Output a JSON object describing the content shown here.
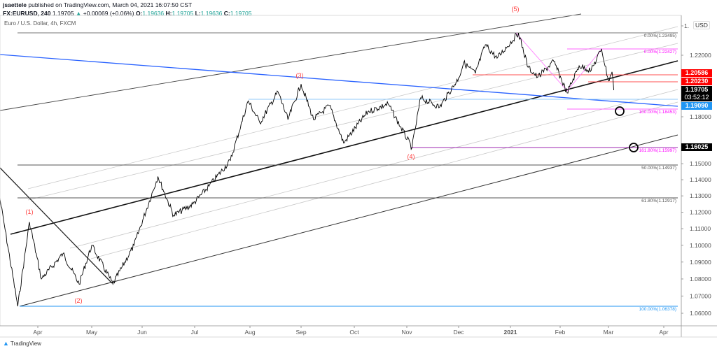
{
  "header": {
    "author": "jsaettele",
    "published": "published on TradingView.com, March 04, 2021 16:07:50 CST",
    "symbol": "FX:EURUSD, 240",
    "last": "1.19705",
    "change_icon": "triangle-up-icon",
    "change": "+0.00069 (+0.06%)",
    "o_label": "O:",
    "o": "1.19636",
    "h_label": "H:",
    "h": "1.19705",
    "l_label": "L:",
    "l": "1.19636",
    "c_label": "C:",
    "c": "1.19705"
  },
  "legend": "Euro / U.S. Dollar, 4h, FXCM",
  "currency": "USD",
  "colors": {
    "up": "#26a69a",
    "red": "#ff0000",
    "blue": "#2962ff",
    "magenta": "#ff00ff",
    "wave": "#ff3b3b"
  },
  "badges": [
    {
      "text": "1.20586",
      "color": "#ff0000"
    },
    {
      "text": "1.20230",
      "color": "#ff0000"
    },
    {
      "text": "1.19705",
      "color": "#000000"
    },
    {
      "text": "03:52:12",
      "color": "#000000"
    },
    {
      "text": "1.19090",
      "color": "#2196f3"
    },
    {
      "text": "1.16025",
      "color": "#000000"
    }
  ],
  "footer": {
    "brand": "TradingView",
    "logo_icon": "tradingview-logo-icon"
  },
  "chart_data": {
    "type": "line",
    "title": "",
    "scale": "log",
    "ylim": [
      1.055,
      1.255
    ],
    "x_ticks": [
      "Apr",
      "May",
      "Jun",
      "Jul",
      "Aug",
      "Sep",
      "Oct",
      "Nov",
      "Dec",
      "2021",
      "Feb",
      "Mar",
      "Apr"
    ],
    "y_ticks": [
      "1.",
      "1.22000",
      "1.18000",
      "1.15000",
      "1.14000",
      "1.13000",
      "1.12000",
      "1.11000",
      "1.10000",
      "1.09000",
      "1.08000",
      "1.07000",
      "1.06000"
    ],
    "series": [
      {
        "values": [
          [
            "2020-03-09",
            1.13
          ],
          [
            "2020-03-12",
            1.112
          ],
          [
            "2020-03-20",
            1.064
          ],
          [
            "2020-03-27",
            1.114
          ],
          [
            "2020-04-03",
            1.08
          ],
          [
            "2020-04-15",
            1.095
          ],
          [
            "2020-04-24",
            1.077
          ],
          [
            "2020-05-01",
            1.1
          ],
          [
            "2020-05-14",
            1.077
          ],
          [
            "2020-05-27",
            1.1
          ],
          [
            "2020-06-10",
            1.142
          ],
          [
            "2020-06-19",
            1.118
          ],
          [
            "2020-06-30",
            1.125
          ],
          [
            "2020-07-09",
            1.136
          ],
          [
            "2020-07-21",
            1.152
          ],
          [
            "2020-07-31",
            1.19
          ],
          [
            "2020-08-07",
            1.176
          ],
          [
            "2020-08-18",
            1.196
          ],
          [
            "2020-08-24",
            1.178
          ],
          [
            "2020-09-01",
            1.201
          ],
          [
            "2020-09-08",
            1.178
          ],
          [
            "2020-09-17",
            1.187
          ],
          [
            "2020-09-25",
            1.163
          ],
          [
            "2020-10-09",
            1.183
          ],
          [
            "2020-10-21",
            1.188
          ],
          [
            "2020-11-04",
            1.16
          ],
          [
            "2020-11-09",
            1.192
          ],
          [
            "2020-11-20",
            1.186
          ],
          [
            "2020-12-01",
            1.205
          ],
          [
            "2020-12-04",
            1.215
          ],
          [
            "2020-12-11",
            1.208
          ],
          [
            "2020-12-17",
            1.227
          ],
          [
            "2020-12-24",
            1.218
          ],
          [
            "2021-01-06",
            1.2349
          ],
          [
            "2021-01-12",
            1.212
          ],
          [
            "2021-01-18",
            1.2055
          ],
          [
            "2021-01-28",
            1.216
          ],
          [
            "2021-02-05",
            1.1952
          ],
          [
            "2021-02-12",
            1.213
          ],
          [
            "2021-02-19",
            1.21
          ],
          [
            "2021-02-25",
            1.2243
          ],
          [
            "2021-03-01",
            1.203
          ],
          [
            "2021-03-03",
            1.209
          ],
          [
            "2021-03-04",
            1.197
          ]
        ]
      }
    ],
    "annotations": {
      "waves": [
        "(1)",
        "(2)",
        "(3)",
        "(4)",
        "(5)"
      ],
      "fib_gray": [
        "0.00%(1.23495)",
        "50.00%(1.14937)",
        "61.80%(1.12917)"
      ],
      "fib_blue": [
        "100.00%(1.06378)"
      ],
      "fib_magenta": [
        "0.00%(1.22427)",
        "100.00%(1.18453)",
        "161.80%(1.15997)"
      ]
    }
  }
}
